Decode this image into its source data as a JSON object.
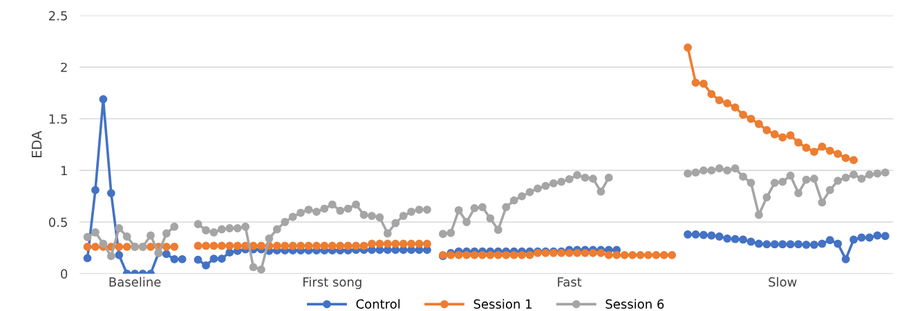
{
  "chart_data": {
    "type": "line",
    "ylabel": "EDA",
    "categories": [
      null,
      null,
      null,
      null,
      null,
      null,
      "Baseline",
      null,
      null,
      null,
      null,
      null,
      null,
      null,
      null,
      null,
      null,
      null,
      null,
      null,
      null,
      null,
      null,
      null,
      null,
      null,
      null,
      null,
      null,
      null,
      null,
      "First song",
      null,
      null,
      null,
      null,
      null,
      null,
      null,
      null,
      null,
      null,
      null,
      null,
      null,
      null,
      null,
      null,
      null,
      null,
      null,
      null,
      null,
      null,
      null,
      null,
      null,
      null,
      null,
      null,
      null,
      "Fast",
      null,
      null,
      null,
      null,
      null,
      null,
      null,
      null,
      null,
      null,
      null,
      null,
      null,
      null,
      null,
      null,
      null,
      null,
      null,
      null,
      null,
      null,
      null,
      null,
      null,
      null,
      "Slow",
      null,
      null,
      null,
      null,
      null,
      null,
      null,
      null,
      null,
      null,
      null,
      null,
      null
    ],
    "series": [
      {
        "name": "Control",
        "color": "#4472c4",
        "values": [
          0.15,
          0.81,
          1.69,
          0.78,
          0.18,
          0,
          0,
          0,
          0,
          0.2,
          0.19,
          0.14,
          0.14,
          null,
          0.135,
          0.08,
          0.145,
          0.145,
          0.205,
          0.22,
          0.235,
          0.235,
          0.235,
          0.22,
          0.225,
          0.225,
          0.225,
          0.225,
          0.225,
          0.225,
          0.225,
          0.225,
          0.225,
          0.225,
          0.23,
          0.23,
          0.23,
          0.23,
          0.23,
          0.23,
          0.23,
          0.23,
          0.23,
          0.23,
          null,
          0.17,
          0.2,
          0.215,
          0.215,
          0.215,
          0.215,
          0.215,
          0.215,
          0.215,
          0.215,
          0.215,
          0.215,
          0.215,
          0.215,
          0.215,
          0.215,
          0.23,
          0.23,
          0.23,
          0.23,
          0.23,
          0.23,
          0.23,
          null,
          null,
          null,
          null,
          null,
          null,
          null,
          null,
          0.38,
          0.38,
          0.375,
          0.37,
          0.36,
          0.34,
          0.335,
          0.33,
          0.31,
          0.29,
          0.285,
          0.285,
          0.285,
          0.285,
          0.285,
          0.28,
          0.28,
          0.29,
          0.325,
          0.29,
          0.14,
          0.33,
          0.35,
          0.35,
          0.37,
          0.365
        ]
      },
      {
        "name": "Session 1",
        "color": "#ed7d31",
        "values": [
          0.26,
          0.26,
          0.26,
          0.26,
          0.26,
          0.26,
          0.26,
          0.26,
          0.26,
          0.26,
          0.26,
          0.26,
          null,
          null,
          0.27,
          0.27,
          0.27,
          0.27,
          0.27,
          0.27,
          0.27,
          0.27,
          0.27,
          0.27,
          0.27,
          0.27,
          0.27,
          0.27,
          0.27,
          0.27,
          0.27,
          0.27,
          0.27,
          0.27,
          0.27,
          0.27,
          0.29,
          0.29,
          0.29,
          0.29,
          0.29,
          0.29,
          0.29,
          0.29,
          null,
          0.18,
          0.18,
          0.18,
          0.18,
          0.18,
          0.18,
          0.18,
          0.18,
          0.18,
          0.18,
          0.18,
          0.18,
          0.2,
          0.2,
          0.2,
          0.2,
          0.2,
          0.2,
          0.2,
          0.2,
          0.2,
          0.18,
          0.18,
          0.18,
          0.18,
          0.18,
          0.18,
          0.18,
          0.18,
          0.18,
          null,
          2.19,
          1.85,
          1.84,
          1.74,
          1.68,
          1.65,
          1.61,
          1.54,
          1.5,
          1.45,
          1.39,
          1.35,
          1.32,
          1.34,
          1.27,
          1.22,
          1.18,
          1.23,
          1.19,
          1.16,
          1.12,
          1.1,
          null,
          null,
          null,
          null
        ]
      },
      {
        "name": "Session 6",
        "color": "#a5a5a5",
        "values": [
          0.355,
          0.4,
          0.29,
          0.17,
          0.44,
          0.36,
          0.26,
          0.26,
          0.37,
          0.2,
          0.39,
          0.455,
          null,
          null,
          0.48,
          0.42,
          0.4,
          0.43,
          0.44,
          0.44,
          0.455,
          0.063,
          0.04,
          0.34,
          0.43,
          0.5,
          0.55,
          0.59,
          0.62,
          0.6,
          0.63,
          0.67,
          0.61,
          0.63,
          0.67,
          0.57,
          0.56,
          0.545,
          0.39,
          0.49,
          0.56,
          0.6,
          0.62,
          0.62,
          null,
          0.385,
          0.395,
          0.615,
          0.5,
          0.635,
          0.645,
          0.535,
          0.425,
          0.645,
          0.71,
          0.75,
          0.79,
          0.825,
          0.85,
          0.875,
          0.89,
          0.915,
          0.955,
          0.93,
          0.92,
          0.795,
          0.93,
          null,
          null,
          null,
          null,
          null,
          null,
          null,
          null,
          null,
          0.97,
          0.98,
          1.0,
          1.0,
          1.02,
          1.0,
          1.02,
          0.94,
          0.88,
          0.57,
          0.74,
          0.88,
          0.89,
          0.95,
          0.78,
          0.91,
          0.92,
          0.69,
          0.81,
          0.9,
          0.93,
          0.96,
          0.92,
          0.96,
          0.97,
          0.98
        ]
      }
    ],
    "ylim": [
      0,
      2.5
    ],
    "yticks": [
      0,
      0.5,
      1,
      1.5,
      2,
      2.5
    ],
    "grid": "y",
    "legend": "bottom",
    "marker": "circle",
    "line_style": "solid"
  }
}
